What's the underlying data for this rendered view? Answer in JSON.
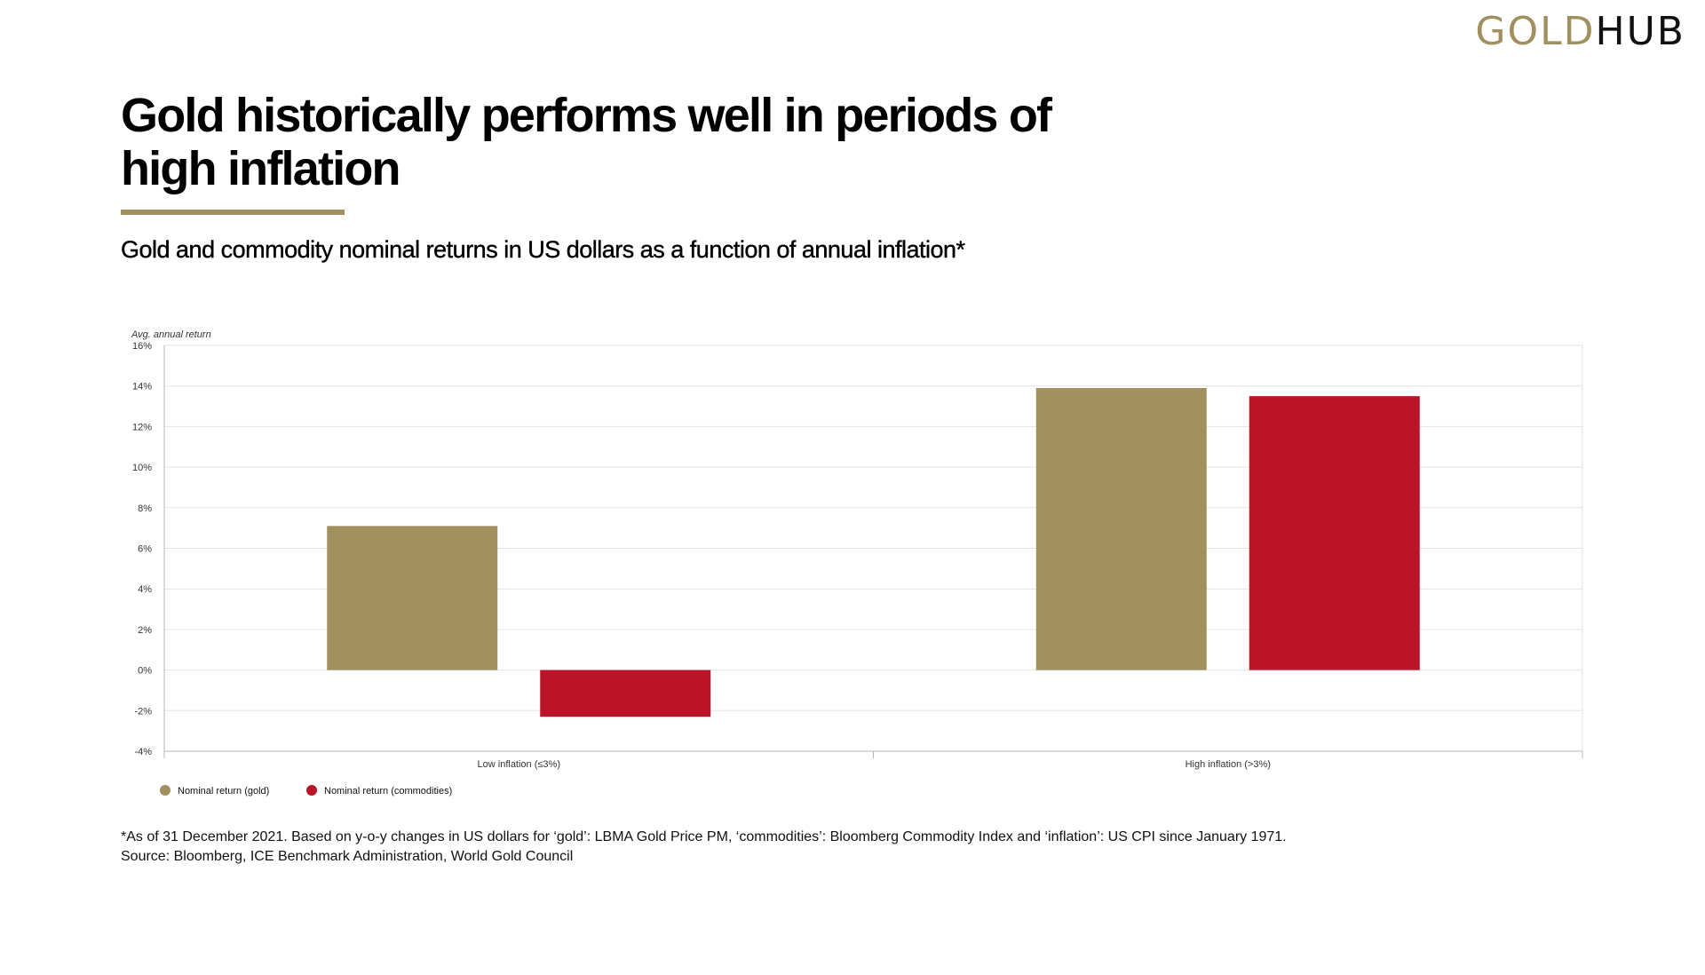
{
  "logo": {
    "part1": "GOLD",
    "part2": "HUB"
  },
  "title": "Gold historically performs well in periods of high inflation",
  "subtitle": "Gold and commodity nominal returns in US dollars as a function of annual inflation*",
  "footnote": {
    "note": "*As of 31 December 2021. Based on y-o-y changes in US dollars for ‘gold’: LBMA Gold Price PM, ‘commodities’: Bloomberg Commodity Index and ‘inflation’: US CPI since January 1971.",
    "source": "Source: Bloomberg, ICE Benchmark Administration, World Gold Council"
  },
  "colors": {
    "gold": "#a18f5d",
    "commodities": "#bb1327",
    "grid": "#e3e3e3",
    "axis": "#b5b5b5"
  },
  "chart_data": {
    "type": "bar",
    "ylabel": "Avg. annual return",
    "ylim": [
      -4,
      16
    ],
    "ytick_step": 2,
    "ytick_labels": [
      "-4%",
      "-2%",
      "0%",
      "2%",
      "4%",
      "6%",
      "8%",
      "10%",
      "12%",
      "14%",
      "16%"
    ],
    "categories": [
      "Low inflation (≤3%)",
      "High inflation (>3%)"
    ],
    "series": [
      {
        "name": "Nominal return (gold)",
        "color": "#a18f5d",
        "values": [
          7.1,
          13.9
        ]
      },
      {
        "name": "Nominal return (commodities)",
        "color": "#bb1327",
        "values": [
          -2.3,
          13.5
        ]
      }
    ],
    "grid": true,
    "legend": "bottom-left"
  }
}
